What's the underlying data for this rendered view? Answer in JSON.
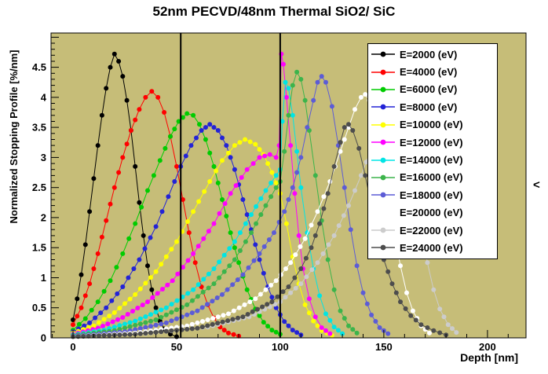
{
  "page": {
    "side_chevron": "<"
  },
  "chart_data": {
    "type": "line",
    "title": "52nm PECVD/48nm Thermal SiO2/ SiC",
    "xlabel": "Depth [nm]",
    "ylabel": "Normalized Stopping Profile [%/nm]",
    "xlim": [
      -10.6,
      218.6
    ],
    "ylim": [
      0,
      5.07
    ],
    "x_major_ticks": [
      0,
      50,
      100,
      150,
      200
    ],
    "x_tick_labels": [
      "0",
      "50",
      "100",
      "150",
      "200"
    ],
    "x_minor_step": 10,
    "y_major_ticks": [
      0,
      0.5,
      1,
      1.5,
      2,
      2.5,
      3,
      3.5,
      4,
      4.5
    ],
    "y_tick_labels": [
      "0",
      "0.5",
      "1",
      "1.5",
      "2",
      "2.5",
      "3",
      "3.5",
      "4",
      "4.5"
    ],
    "y_minor_step": 0.1,
    "background_color": "#c6bd78",
    "frame_color": "#000000",
    "boundary_lines_x": [
      52,
      100
    ],
    "legend_position": "top-right",
    "grid": false,
    "series": [
      {
        "name": "E=2000 (eV)",
        "color": "#000000",
        "points": [
          [
            0,
            0.3
          ],
          [
            2,
            0.65
          ],
          [
            4,
            1.05
          ],
          [
            6,
            1.55
          ],
          [
            8,
            2.1
          ],
          [
            10,
            2.65
          ],
          [
            12,
            3.2
          ],
          [
            14,
            3.7
          ],
          [
            16,
            4.15
          ],
          [
            18,
            4.5
          ],
          [
            20,
            4.72
          ],
          [
            22,
            4.6
          ],
          [
            24,
            4.35
          ],
          [
            26,
            3.95
          ],
          [
            28,
            3.45
          ],
          [
            30,
            2.85
          ],
          [
            32,
            2.25
          ],
          [
            34,
            1.7
          ],
          [
            36,
            1.2
          ],
          [
            38,
            0.8
          ],
          [
            40,
            0.5
          ],
          [
            42,
            0.28
          ],
          [
            44,
            0.15
          ],
          [
            47,
            0.06
          ],
          [
            50,
            0.02
          ]
        ]
      },
      {
        "name": "E=4000 (eV)",
        "color": "#ff0000",
        "points": [
          [
            0,
            0.22
          ],
          [
            4,
            0.5
          ],
          [
            8,
            0.9
          ],
          [
            12,
            1.4
          ],
          [
            16,
            1.95
          ],
          [
            20,
            2.5
          ],
          [
            24,
            3.0
          ],
          [
            28,
            3.45
          ],
          [
            32,
            3.8
          ],
          [
            35,
            4.0
          ],
          [
            38,
            4.1
          ],
          [
            41,
            4.0
          ],
          [
            44,
            3.75
          ],
          [
            47,
            3.35
          ],
          [
            50,
            2.85
          ],
          [
            53,
            2.3
          ],
          [
            56,
            1.75
          ],
          [
            59,
            1.25
          ],
          [
            62,
            0.85
          ],
          [
            65,
            0.55
          ],
          [
            68,
            0.33
          ],
          [
            71,
            0.18
          ],
          [
            75,
            0.08
          ],
          [
            80,
            0.03
          ]
        ]
      },
      {
        "name": "E=6000 (eV)",
        "color": "#00cc00",
        "points": [
          [
            0,
            0.13
          ],
          [
            6,
            0.32
          ],
          [
            12,
            0.6
          ],
          [
            18,
            0.95
          ],
          [
            24,
            1.4
          ],
          [
            30,
            1.9
          ],
          [
            36,
            2.45
          ],
          [
            42,
            2.95
          ],
          [
            47,
            3.35
          ],
          [
            51,
            3.6
          ],
          [
            55,
            3.73
          ],
          [
            58,
            3.7
          ],
          [
            61,
            3.55
          ],
          [
            64,
            3.3
          ],
          [
            68,
            2.85
          ],
          [
            72,
            2.3
          ],
          [
            76,
            1.75
          ],
          [
            80,
            1.25
          ],
          [
            84,
            0.8
          ],
          [
            88,
            0.48
          ],
          [
            92,
            0.26
          ],
          [
            96,
            0.13
          ],
          [
            100,
            0.06
          ]
        ]
      },
      {
        "name": "E=8000 (eV)",
        "color": "#2323d6",
        "points": [
          [
            0,
            0.1
          ],
          [
            8,
            0.25
          ],
          [
            16,
            0.5
          ],
          [
            24,
            0.85
          ],
          [
            32,
            1.3
          ],
          [
            40,
            1.85
          ],
          [
            46,
            2.35
          ],
          [
            52,
            2.85
          ],
          [
            57,
            3.2
          ],
          [
            62,
            3.45
          ],
          [
            66,
            3.55
          ],
          [
            70,
            3.45
          ],
          [
            74,
            3.2
          ],
          [
            78,
            2.8
          ],
          [
            82,
            2.3
          ],
          [
            86,
            1.8
          ],
          [
            90,
            1.3
          ],
          [
            94,
            0.85
          ],
          [
            98,
            0.5
          ],
          [
            102,
            0.27
          ],
          [
            106,
            0.13
          ],
          [
            110,
            0.05
          ]
        ]
      },
      {
        "name": "E=10000 (eV)",
        "color": "#ffff00",
        "points": [
          [
            0,
            0.08
          ],
          [
            10,
            0.2
          ],
          [
            20,
            0.42
          ],
          [
            30,
            0.72
          ],
          [
            40,
            1.1
          ],
          [
            50,
            1.6
          ],
          [
            58,
            2.1
          ],
          [
            66,
            2.6
          ],
          [
            72,
            2.95
          ],
          [
            78,
            3.2
          ],
          [
            83,
            3.3
          ],
          [
            88,
            3.22
          ],
          [
            92,
            3.05
          ],
          [
            96,
            2.75
          ],
          [
            100,
            2.4
          ],
          [
            103,
            1.9
          ],
          [
            106,
            1.35
          ],
          [
            109,
            0.9
          ],
          [
            112,
            0.55
          ],
          [
            116,
            0.28
          ],
          [
            120,
            0.12
          ],
          [
            125,
            0.04
          ]
        ]
      },
      {
        "name": "E=12000 (eV)",
        "color": "#ff00ff",
        "points": [
          [
            0,
            0.06
          ],
          [
            12,
            0.16
          ],
          [
            24,
            0.34
          ],
          [
            36,
            0.6
          ],
          [
            48,
            0.95
          ],
          [
            58,
            1.4
          ],
          [
            68,
            1.9
          ],
          [
            76,
            2.4
          ],
          [
            84,
            2.8
          ],
          [
            90,
            3.0
          ],
          [
            95,
            3.05
          ],
          [
            98,
            3.0
          ],
          [
            99.5,
            3.2
          ],
          [
            100.5,
            4.72
          ],
          [
            101.5,
            4.55
          ],
          [
            103,
            4.0
          ],
          [
            105,
            3.2
          ],
          [
            107,
            2.4
          ],
          [
            109,
            1.7
          ],
          [
            111,
            1.15
          ],
          [
            114,
            0.65
          ],
          [
            117,
            0.35
          ],
          [
            120,
            0.17
          ],
          [
            124,
            0.07
          ]
        ]
      },
      {
        "name": "E=14000 (eV)",
        "color": "#00e5e5",
        "points": [
          [
            0,
            0.05
          ],
          [
            15,
            0.13
          ],
          [
            30,
            0.28
          ],
          [
            45,
            0.5
          ],
          [
            58,
            0.8
          ],
          [
            68,
            1.15
          ],
          [
            78,
            1.6
          ],
          [
            86,
            2.05
          ],
          [
            93,
            2.45
          ],
          [
            98,
            2.7
          ],
          [
            100,
            2.8
          ],
          [
            101,
            3.6
          ],
          [
            102.5,
            4.25
          ],
          [
            104,
            4.15
          ],
          [
            106,
            3.7
          ],
          [
            108,
            3.1
          ],
          [
            110,
            2.5
          ],
          [
            113,
            1.75
          ],
          [
            116,
            1.15
          ],
          [
            119,
            0.7
          ],
          [
            122,
            0.4
          ],
          [
            126,
            0.18
          ],
          [
            130,
            0.07
          ]
        ]
      },
      {
        "name": "E=16000 (eV)",
        "color": "#3cb44b",
        "points": [
          [
            0,
            0.04
          ],
          [
            20,
            0.12
          ],
          [
            40,
            0.3
          ],
          [
            55,
            0.55
          ],
          [
            68,
            0.9
          ],
          [
            78,
            1.3
          ],
          [
            86,
            1.75
          ],
          [
            93,
            2.2
          ],
          [
            98,
            2.5
          ],
          [
            100,
            2.6
          ],
          [
            102,
            3.1
          ],
          [
            104,
            3.7
          ],
          [
            106,
            4.2
          ],
          [
            108,
            4.42
          ],
          [
            110,
            4.3
          ],
          [
            112,
            3.95
          ],
          [
            114,
            3.45
          ],
          [
            117,
            2.7
          ],
          [
            120,
            1.95
          ],
          [
            123,
            1.3
          ],
          [
            126,
            0.8
          ],
          [
            129,
            0.45
          ],
          [
            133,
            0.2
          ],
          [
            137,
            0.08
          ]
        ]
      },
      {
        "name": "E=18000 (eV)",
        "color": "#5c5cd6",
        "points": [
          [
            0,
            0.03
          ],
          [
            25,
            0.1
          ],
          [
            45,
            0.25
          ],
          [
            60,
            0.45
          ],
          [
            72,
            0.72
          ],
          [
            82,
            1.05
          ],
          [
            90,
            1.4
          ],
          [
            97,
            1.75
          ],
          [
            102,
            2.1
          ],
          [
            106,
            2.5
          ],
          [
            110,
            3.0
          ],
          [
            113,
            3.5
          ],
          [
            116,
            3.95
          ],
          [
            118,
            4.25
          ],
          [
            120,
            4.35
          ],
          [
            122,
            4.25
          ],
          [
            125,
            3.85
          ],
          [
            128,
            3.2
          ],
          [
            131,
            2.5
          ],
          [
            134,
            1.8
          ],
          [
            137,
            1.2
          ],
          [
            140,
            0.75
          ],
          [
            144,
            0.38
          ],
          [
            148,
            0.17
          ],
          [
            152,
            0.07
          ]
        ]
      },
      {
        "name": "E=20000 (eV)",
        "color": "#ffffff",
        "points": [
          [
            0,
            0.02
          ],
          [
            30,
            0.08
          ],
          [
            55,
            0.2
          ],
          [
            75,
            0.4
          ],
          [
            88,
            0.65
          ],
          [
            98,
            0.95
          ],
          [
            105,
            1.25
          ],
          [
            112,
            1.65
          ],
          [
            118,
            2.1
          ],
          [
            124,
            2.6
          ],
          [
            129,
            3.1
          ],
          [
            133,
            3.5
          ],
          [
            136,
            3.8
          ],
          [
            139,
            4.0
          ],
          [
            141,
            4.05
          ],
          [
            143,
            3.95
          ],
          [
            146,
            3.6
          ],
          [
            149,
            3.05
          ],
          [
            152,
            2.4
          ],
          [
            155,
            1.75
          ],
          [
            158,
            1.2
          ],
          [
            161,
            0.75
          ],
          [
            164,
            0.45
          ],
          [
            168,
            0.2
          ],
          [
            172,
            0.08
          ]
        ]
      },
      {
        "name": "E=22000 (eV)",
        "color": "#cccccc",
        "points": [
          [
            0,
            0.02
          ],
          [
            35,
            0.07
          ],
          [
            65,
            0.18
          ],
          [
            85,
            0.35
          ],
          [
            100,
            0.6
          ],
          [
            110,
            0.9
          ],
          [
            118,
            1.25
          ],
          [
            126,
            1.7
          ],
          [
            133,
            2.2
          ],
          [
            139,
            2.7
          ],
          [
            144,
            3.15
          ],
          [
            148,
            3.5
          ],
          [
            151,
            3.75
          ],
          [
            154,
            3.85
          ],
          [
            156,
            3.8
          ],
          [
            159,
            3.5
          ],
          [
            162,
            3.0
          ],
          [
            165,
            2.4
          ],
          [
            168,
            1.8
          ],
          [
            171,
            1.25
          ],
          [
            174,
            0.8
          ],
          [
            177,
            0.48
          ],
          [
            181,
            0.22
          ],
          [
            185,
            0.09
          ]
        ]
      },
      {
        "name": "E=24000 (eV)",
        "color": "#4d4d4d",
        "points": [
          [
            0,
            0.02
          ],
          [
            30,
            0.06
          ],
          [
            60,
            0.16
          ],
          [
            82,
            0.35
          ],
          [
            96,
            0.6
          ],
          [
            104,
            0.85
          ],
          [
            110,
            1.15
          ],
          [
            115,
            1.5
          ],
          [
            119,
            1.9
          ],
          [
            123,
            2.4
          ],
          [
            126,
            2.85
          ],
          [
            129,
            3.25
          ],
          [
            131,
            3.5
          ],
          [
            133,
            3.55
          ],
          [
            135,
            3.45
          ],
          [
            138,
            3.15
          ],
          [
            141,
            2.7
          ],
          [
            144,
            2.2
          ],
          [
            147,
            1.7
          ],
          [
            150,
            1.3
          ],
          [
            154,
            0.9
          ],
          [
            158,
            0.6
          ],
          [
            163,
            0.37
          ],
          [
            168,
            0.22
          ],
          [
            174,
            0.12
          ],
          [
            180,
            0.05
          ]
        ]
      }
    ]
  }
}
